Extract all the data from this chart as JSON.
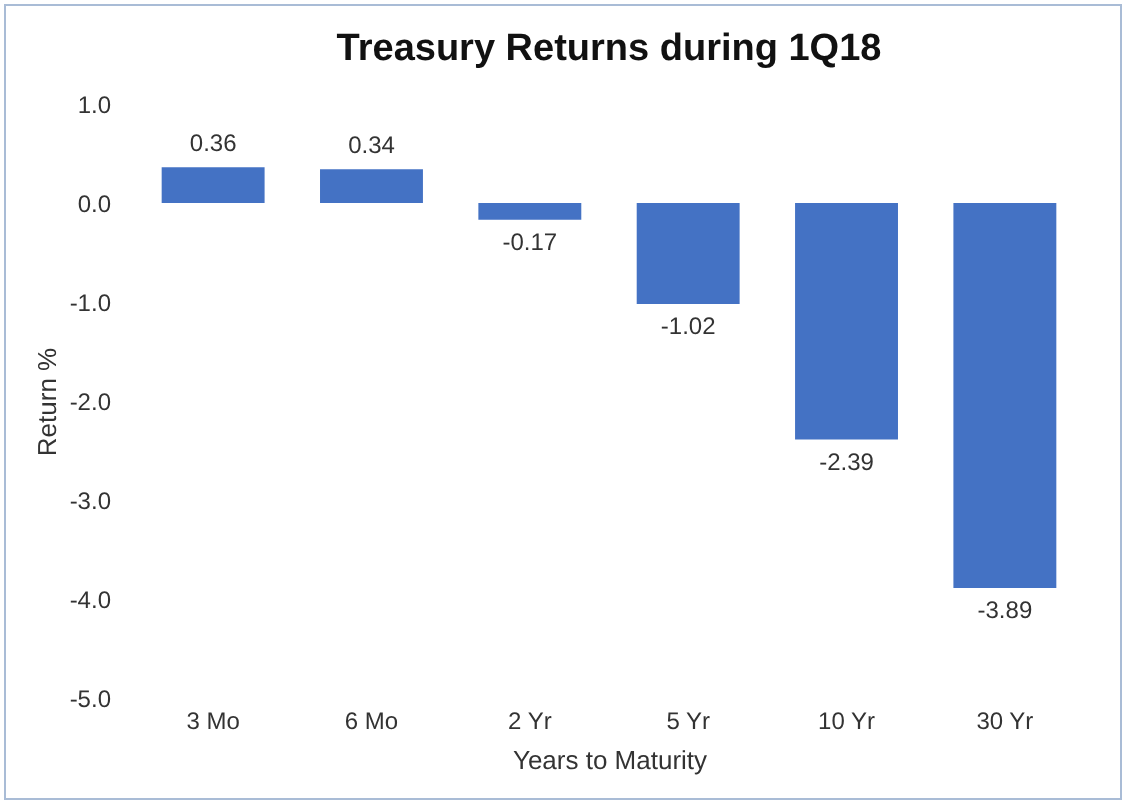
{
  "chart_data": {
    "type": "bar",
    "title": "Treasury Returns during 1Q18",
    "xlabel": "Years to Maturity",
    "ylabel": "Return %",
    "categories": [
      "3 Mo",
      "6 Mo",
      "2 Yr",
      "5 Yr",
      "10 Yr",
      "30 Yr"
    ],
    "values": [
      0.36,
      0.34,
      -0.17,
      -1.02,
      -2.39,
      -3.89
    ],
    "color": "#4472c4",
    "ylim": [
      -5,
      1
    ],
    "yticks": [
      {
        "value": 1,
        "label": "1.0"
      },
      {
        "value": 0,
        "label": "0.0"
      },
      {
        "value": -1,
        "label": "-1.0"
      },
      {
        "value": -2,
        "label": "-2.0"
      },
      {
        "value": -3,
        "label": "-3.0"
      },
      {
        "value": -4,
        "label": "-4.0"
      },
      {
        "value": -5,
        "label": "-5.0"
      }
    ],
    "data_labels": true,
    "grid": false
  }
}
